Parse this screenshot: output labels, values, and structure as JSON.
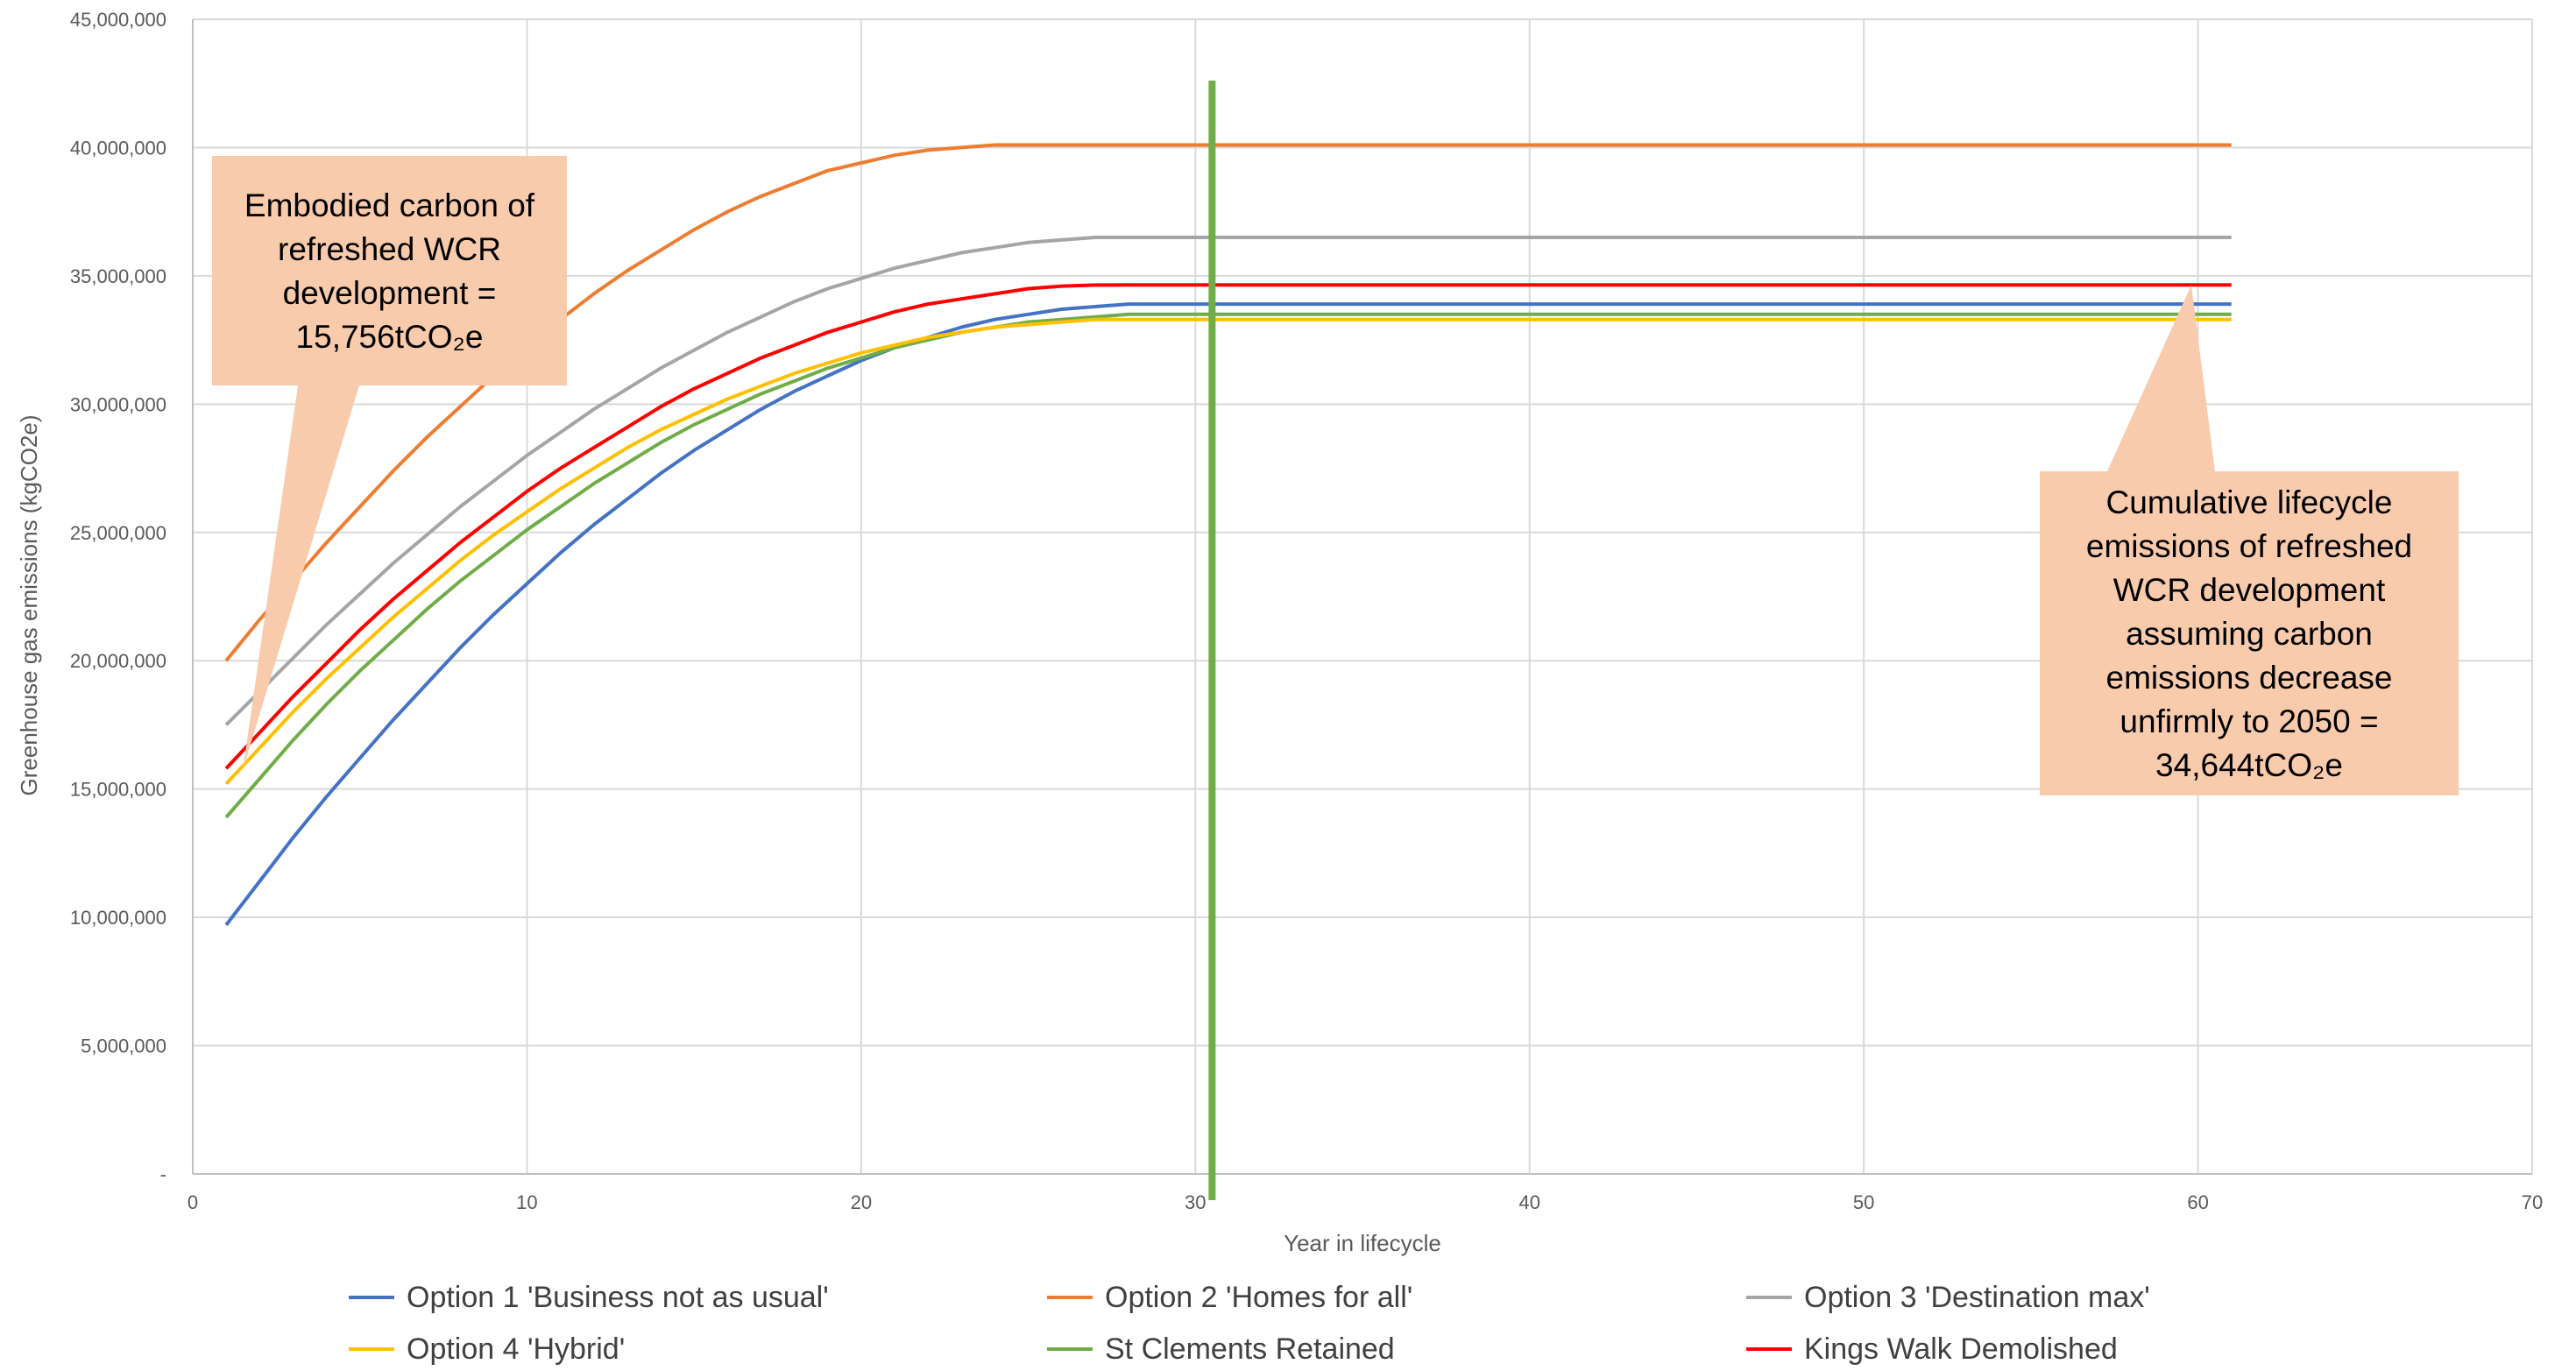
{
  "chart_data": {
    "type": "line",
    "xlabel": "Year in lifecycle",
    "ylabel": "Greenhouse gas emissions (kgCO2e)",
    "xlim": [
      0,
      70
    ],
    "ylim": [
      0,
      45000000
    ],
    "x_ticks": [
      0,
      10,
      20,
      30,
      40,
      50,
      60,
      70
    ],
    "y_ticks": [
      0,
      5000000,
      10000000,
      15000000,
      20000000,
      25000000,
      30000000,
      35000000,
      40000000,
      45000000
    ],
    "x_tick_labels": [
      "0",
      "10",
      "20",
      "30",
      "40",
      "50",
      "60",
      "70"
    ],
    "y_tick_labels": [
      "-",
      "5,000,000",
      "10,000,000",
      "15,000,000",
      "20,000,000",
      "25,000,000",
      "30,000,000",
      "35,000,000",
      "40,000,000",
      "45,000,000"
    ],
    "grid": true,
    "legend_position": "bottom",
    "x": [
      1,
      2,
      3,
      4,
      5,
      6,
      7,
      8,
      9,
      10,
      11,
      12,
      13,
      14,
      15,
      16,
      17,
      18,
      19,
      20,
      21,
      22,
      23,
      24,
      25,
      26,
      27,
      28,
      29,
      30,
      31,
      32,
      33,
      34,
      35,
      36,
      37,
      38,
      39,
      40,
      41,
      42,
      43,
      44,
      45,
      46,
      47,
      48,
      49,
      50,
      51,
      52,
      53,
      54,
      55,
      56,
      57,
      58,
      59,
      60,
      61
    ],
    "series": [
      {
        "name": "Option 1 'Business not as usual'",
        "color": "#4472C4",
        "values": [
          9700000,
          11400000,
          13100000,
          14700000,
          16200000,
          17700000,
          19100000,
          20500000,
          21800000,
          23000000,
          24200000,
          25300000,
          26300000,
          27300000,
          28200000,
          29000000,
          29800000,
          30500000,
          31100000,
          31700000,
          32200000,
          32600000,
          33000000,
          33300000,
          33500000,
          33700000,
          33800000,
          33900000,
          33900000,
          33900000,
          33900000,
          33900000,
          33900000,
          33900000,
          33900000,
          33900000,
          33900000,
          33900000,
          33900000,
          33900000,
          33900000,
          33900000,
          33900000,
          33900000,
          33900000,
          33900000,
          33900000,
          33900000,
          33900000,
          33900000,
          33900000,
          33900000,
          33900000,
          33900000,
          33900000,
          33900000,
          33900000,
          33900000,
          33900000,
          33900000,
          33900000
        ]
      },
      {
        "name": "Option 2 'Homes for all'",
        "color": "#ED7D31",
        "values": [
          20000000,
          21600000,
          23100000,
          24600000,
          26000000,
          27400000,
          28700000,
          29900000,
          31100000,
          32200000,
          33300000,
          34300000,
          35200000,
          36000000,
          36800000,
          37500000,
          38100000,
          38600000,
          39100000,
          39400000,
          39700000,
          39900000,
          40000000,
          40100000,
          40100000,
          40100000,
          40100000,
          40100000,
          40100000,
          40100000,
          40100000,
          40100000,
          40100000,
          40100000,
          40100000,
          40100000,
          40100000,
          40100000,
          40100000,
          40100000,
          40100000,
          40100000,
          40100000,
          40100000,
          40100000,
          40100000,
          40100000,
          40100000,
          40100000,
          40100000,
          40100000,
          40100000,
          40100000,
          40100000,
          40100000,
          40100000,
          40100000,
          40100000,
          40100000,
          40100000,
          40100000
        ]
      },
      {
        "name": "Option 3 'Destination max'",
        "color": "#A5A5A5",
        "values": [
          17500000,
          18800000,
          20100000,
          21400000,
          22600000,
          23800000,
          24900000,
          26000000,
          27000000,
          28000000,
          28900000,
          29800000,
          30600000,
          31400000,
          32100000,
          32800000,
          33400000,
          34000000,
          34500000,
          34900000,
          35300000,
          35600000,
          35900000,
          36100000,
          36300000,
          36400000,
          36500000,
          36500000,
          36500000,
          36500000,
          36500000,
          36500000,
          36500000,
          36500000,
          36500000,
          36500000,
          36500000,
          36500000,
          36500000,
          36500000,
          36500000,
          36500000,
          36500000,
          36500000,
          36500000,
          36500000,
          36500000,
          36500000,
          36500000,
          36500000,
          36500000,
          36500000,
          36500000,
          36500000,
          36500000,
          36500000,
          36500000,
          36500000,
          36500000,
          36500000,
          36500000
        ]
      },
      {
        "name": "Option 4 'Hybrid'",
        "color": "#FFC000",
        "values": [
          15200000,
          16600000,
          18000000,
          19300000,
          20500000,
          21700000,
          22800000,
          23900000,
          24900000,
          25800000,
          26700000,
          27500000,
          28300000,
          29000000,
          29600000,
          30200000,
          30700000,
          31200000,
          31600000,
          32000000,
          32300000,
          32600000,
          32800000,
          33000000,
          33100000,
          33200000,
          33300000,
          33300000,
          33300000,
          33300000,
          33300000,
          33300000,
          33300000,
          33300000,
          33300000,
          33300000,
          33300000,
          33300000,
          33300000,
          33300000,
          33300000,
          33300000,
          33300000,
          33300000,
          33300000,
          33300000,
          33300000,
          33300000,
          33300000,
          33300000,
          33300000,
          33300000,
          33300000,
          33300000,
          33300000,
          33300000,
          33300000,
          33300000,
          33300000,
          33300000,
          33300000
        ]
      },
      {
        "name": "St Clements Retained",
        "color": "#70AD47",
        "values": [
          13900000,
          15400000,
          16900000,
          18300000,
          19600000,
          20800000,
          22000000,
          23100000,
          24100000,
          25100000,
          26000000,
          26900000,
          27700000,
          28500000,
          29200000,
          29800000,
          30400000,
          30900000,
          31400000,
          31800000,
          32200000,
          32500000,
          32800000,
          33000000,
          33200000,
          33300000,
          33400000,
          33500000,
          33500000,
          33500000,
          33500000,
          33500000,
          33500000,
          33500000,
          33500000,
          33500000,
          33500000,
          33500000,
          33500000,
          33500000,
          33500000,
          33500000,
          33500000,
          33500000,
          33500000,
          33500000,
          33500000,
          33500000,
          33500000,
          33500000,
          33500000,
          33500000,
          33500000,
          33500000,
          33500000,
          33500000,
          33500000,
          33500000,
          33500000,
          33500000,
          33500000
        ]
      },
      {
        "name": "Kings Walk Demolished",
        "color": "#FF0000",
        "values": [
          15800000,
          17200000,
          18600000,
          19900000,
          21200000,
          22400000,
          23500000,
          24600000,
          25600000,
          26600000,
          27500000,
          28300000,
          29100000,
          29900000,
          30600000,
          31200000,
          31800000,
          32300000,
          32800000,
          33200000,
          33600000,
          33900000,
          34100000,
          34300000,
          34500000,
          34600000,
          34640000,
          34644000,
          34644000,
          34644000,
          34644000,
          34644000,
          34644000,
          34644000,
          34644000,
          34644000,
          34644000,
          34644000,
          34644000,
          34644000,
          34644000,
          34644000,
          34644000,
          34644000,
          34644000,
          34644000,
          34644000,
          34644000,
          34644000,
          34644000,
          34644000,
          34644000,
          34644000,
          34644000,
          34644000,
          34644000,
          34644000,
          34644000,
          34644000,
          34644000,
          34644000
        ]
      }
    ],
    "vertical_marker": {
      "x": 30.5,
      "color": "#70AD47"
    },
    "annotations": [
      {
        "lines": [
          "Embodied carbon of",
          "refreshed WCR",
          "development =",
          "15,756tCO₂e"
        ],
        "fill": "#F8CBAD",
        "pointer": {
          "x": 1.5,
          "y": 15756000
        }
      },
      {
        "lines": [
          "Cumulative lifecycle",
          "emissions of refreshed",
          "WCR development",
          "assuming carbon",
          "emissions decrease",
          "unfirmly to 2050 =",
          "34,644tCO₂e"
        ],
        "fill": "#F8CBAD",
        "pointer": {
          "x": 59.8,
          "y": 34644000
        }
      }
    ],
    "colors": {
      "grid": "#D9D9D9",
      "axis": "#BFBFBF",
      "text": "#595959"
    }
  }
}
